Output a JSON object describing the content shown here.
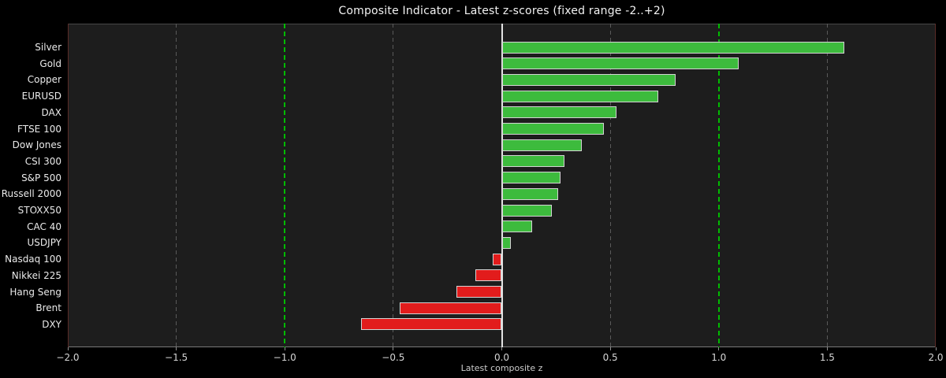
{
  "figure": {
    "background": "#000000",
    "axes_background": "#1d1d1d"
  },
  "chart_data": {
    "type": "bar",
    "orientation": "horizontal",
    "title": "Composite Indicator - Latest z-scores (fixed range -2..+2)",
    "xlabel": "Latest composite z",
    "xlim": [
      -2,
      2
    ],
    "xticks": [
      -2.0,
      -1.5,
      -1.0,
      -0.5,
      0.0,
      0.5,
      1.0,
      1.5,
      2.0
    ],
    "xtick_labels": [
      "−2.0",
      "−1.5",
      "−1.0",
      "−0.5",
      "0.0",
      "0.5",
      "1.0",
      "1.5",
      "2.0"
    ],
    "categories": [
      "Silver",
      "Gold",
      "Copper",
      "EURUSD",
      "DAX",
      "FTSE 100",
      "Dow Jones",
      "CSI 300",
      "S&P 500",
      "Russell 2000",
      "STOXX50",
      "CAC 40",
      "USDJPY",
      "Nasdaq 100",
      "Nikkei 225",
      "Hang Seng",
      "Brent",
      "DXY"
    ],
    "values": [
      1.58,
      1.09,
      0.8,
      0.72,
      0.53,
      0.47,
      0.37,
      0.29,
      0.27,
      0.26,
      0.23,
      0.14,
      0.04,
      -0.04,
      -0.12,
      -0.21,
      -0.47,
      -0.65
    ],
    "bar_colors": {
      "positive": "#3dbb3d",
      "negative": "#e21c1c",
      "edge": "#d4d4d4"
    },
    "gridlines": {
      "style": "dashed",
      "color": "#5a5a5a",
      "at": [
        -1.5,
        -0.5,
        0.5,
        1.5
      ]
    },
    "reference_lines": [
      {
        "x": -1.0,
        "color": "#00bb00",
        "style": "dashed"
      },
      {
        "x": 1.0,
        "color": "#00bb00",
        "style": "dashed"
      },
      {
        "x": 0.0,
        "color": "#e3e3e3",
        "style": "solid"
      }
    ],
    "legend_position": "none",
    "grid": true
  }
}
